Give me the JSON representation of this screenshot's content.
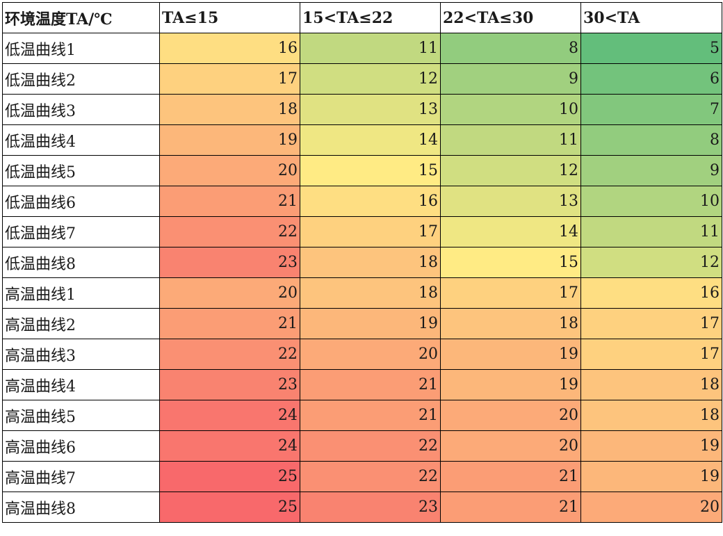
{
  "table": {
    "headers": [
      "环境温度TA/℃",
      "TA≤15",
      "15<TA≤22",
      "22<TA≤30",
      "30<TA"
    ],
    "rows": [
      {
        "label": "低温曲线1",
        "values": [
          16,
          11,
          8,
          5
        ]
      },
      {
        "label": "低温曲线2",
        "values": [
          17,
          12,
          9,
          6
        ]
      },
      {
        "label": "低温曲线3",
        "values": [
          18,
          13,
          10,
          7
        ]
      },
      {
        "label": "低温曲线4",
        "values": [
          19,
          14,
          11,
          8
        ]
      },
      {
        "label": "低温曲线5",
        "values": [
          20,
          15,
          12,
          9
        ]
      },
      {
        "label": "低温曲线6",
        "values": [
          21,
          16,
          13,
          10
        ]
      },
      {
        "label": "低温曲线7",
        "values": [
          22,
          17,
          14,
          11
        ]
      },
      {
        "label": "低温曲线8",
        "values": [
          23,
          18,
          15,
          12
        ]
      },
      {
        "label": "高温曲线1",
        "values": [
          20,
          18,
          17,
          16
        ]
      },
      {
        "label": "高温曲线2",
        "values": [
          21,
          19,
          18,
          17
        ]
      },
      {
        "label": "高温曲线3",
        "values": [
          22,
          20,
          19,
          17
        ]
      },
      {
        "label": "高温曲线4",
        "values": [
          23,
          21,
          19,
          18
        ]
      },
      {
        "label": "高温曲线5",
        "values": [
          24,
          21,
          20,
          18
        ]
      },
      {
        "label": "高温曲线6",
        "values": [
          24,
          22,
          20,
          19
        ]
      },
      {
        "label": "高温曲线7",
        "values": [
          25,
          22,
          21,
          19
        ]
      },
      {
        "label": "高温曲线8",
        "values": [
          25,
          23,
          21,
          20
        ]
      }
    ]
  },
  "color_scale": {
    "type": "green-yellow-red",
    "min_value": 5,
    "max_value": 25,
    "low_color": "#63be7b",
    "mid_color": "#ffeb84",
    "high_color": "#f8696b"
  }
}
